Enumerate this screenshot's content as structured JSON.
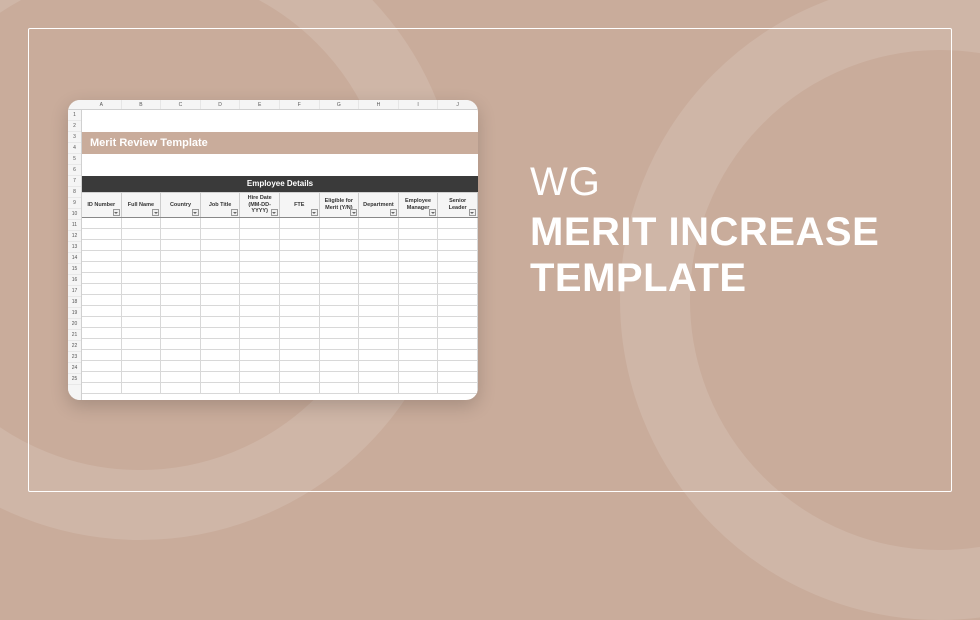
{
  "card_bg": "#c9ac9b",
  "title": {
    "brand": "WG",
    "line1": "MERIT INCREASE",
    "line2": "TEMPLATE"
  },
  "spreadsheet": {
    "title": "Merit Review Template",
    "section": "Employee Details",
    "column_letters": [
      "A",
      "B",
      "C",
      "D",
      "E",
      "F",
      "G",
      "H",
      "I",
      "J"
    ],
    "row_numbers": [
      "1",
      "2",
      "3",
      "4",
      "5",
      "6",
      "7",
      "8",
      "9",
      "10",
      "11",
      "12",
      "13",
      "14",
      "15",
      "16",
      "17",
      "18",
      "19",
      "20",
      "21",
      "22",
      "23",
      "24",
      "25"
    ],
    "columns": [
      "ID Number",
      "Full Name",
      "Country",
      "Job Title",
      "Hire Date (MM-DD-YYYY)",
      "FTE",
      "Eligible for Merit (Y/N)",
      "Department",
      "Employee Manager",
      "Senior Leader"
    ],
    "blank_rows": 16
  },
  "colors": {
    "background": "#c9ac9b",
    "card": "#ffffff",
    "section_header": "#3a3a3a",
    "title_bar": "#c9ac9b",
    "border": "#ffffff"
  }
}
